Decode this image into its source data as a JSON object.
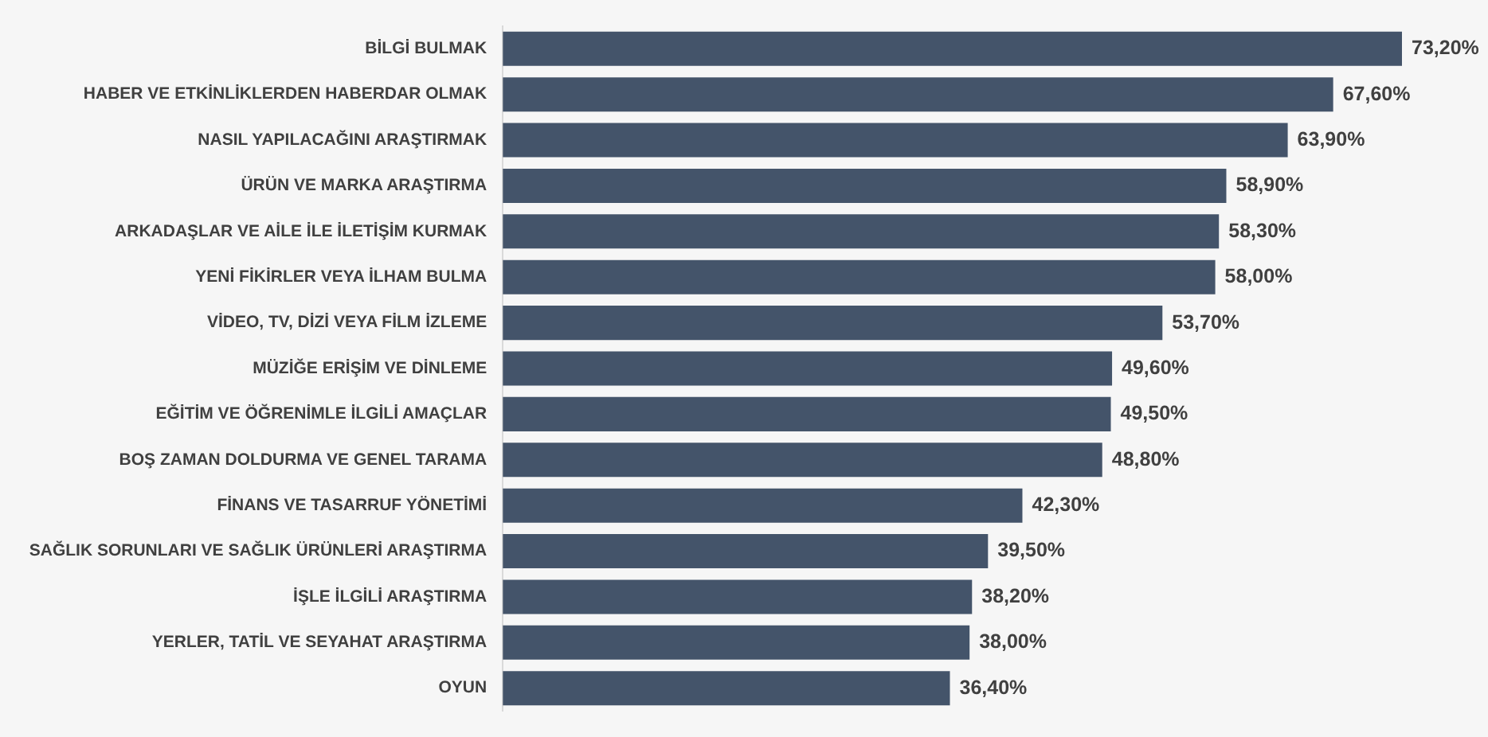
{
  "chart_data": {
    "type": "bar",
    "orientation": "horizontal",
    "color": "#44546a",
    "categories": [
      "BİLGİ BULMAK",
      "HABER VE ETKİNLİKLERDEN HABERDAR OLMAK",
      "NASIL YAPILACAĞINI ARAŞTIRMAK",
      "ÜRÜN VE MARKA ARAŞTIRMA",
      "ARKADAŞLAR VE AİLE İLE İLETİŞİM KURMAK",
      "YENİ FİKİRLER VEYA İLHAM BULMA",
      "VİDEO, TV, DİZİ VEYA FİLM İZLEME",
      "MÜZİĞE ERİŞİM VE DİNLEME",
      "EĞİTİM VE ÖĞRENİMLE İLGİLİ AMAÇLAR",
      "BOŞ ZAMAN DOLDURMA VE GENEL TARAMA",
      "FİNANS VE TASARRUF YÖNETİMİ",
      "SAĞLIK SORUNLARI VE SAĞLIK ÜRÜNLERİ ARAŞTIRMA",
      "İŞLE İLGİLİ ARAŞTIRMA",
      "YERLER, TATİL VE SEYAHAT ARAŞTIRMA",
      "OYUN"
    ],
    "values": [
      73.2,
      67.6,
      63.9,
      58.9,
      58.3,
      58.0,
      53.7,
      49.6,
      49.5,
      48.8,
      42.3,
      39.5,
      38.2,
      38.0,
      36.4
    ],
    "value_labels": [
      "73,20%",
      "67,60%",
      "63,90%",
      "58,90%",
      "58,30%",
      "58,00%",
      "53,70%",
      "49,60%",
      "49,50%",
      "48,80%",
      "42,30%",
      "39,50%",
      "38,20%",
      "38,00%",
      "36,40%"
    ],
    "tick_labels": "y"
  }
}
